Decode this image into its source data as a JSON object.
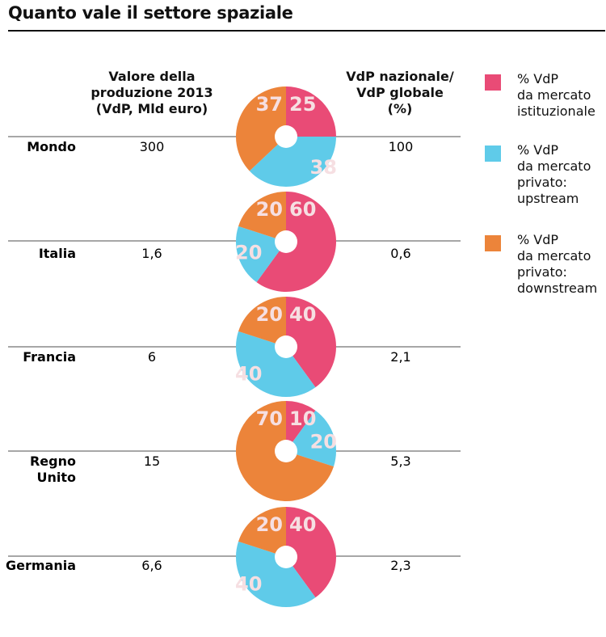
{
  "title": "Quanto vale il settore spaziale",
  "headers": {
    "value": "Valore della\nproduzione 2013\n(VdP, Mld euro)",
    "share": "VdP nazionale/\nVdP globale\n(%)"
  },
  "colors": {
    "istituzionale": "#e94b76",
    "upstream": "#5fcbe9",
    "downstream": "#ec843a",
    "slice_label": "#f6dfe2",
    "rule": "#8a8a8a"
  },
  "legend": [
    {
      "key": "istituzionale",
      "color_key": "istituzionale",
      "text": "% VdP\nda mercato\nistituzionale"
    },
    {
      "key": "upstream",
      "color_key": "upstream",
      "text": "% VdP\nda mercato\nprivato:\nupstream"
    },
    {
      "key": "downstream",
      "color_key": "downstream",
      "text": "% VdP\nda mercato\nprivato:\ndownstream"
    }
  ],
  "chart_data": {
    "type": "pie",
    "series_names": [
      "% VdP da mercato istituzionale",
      "% VdP da mercato privato: upstream",
      "% VdP da mercato privato: downstream"
    ],
    "rows": [
      {
        "name": "Mondo",
        "vdp": "300",
        "share": "100",
        "values": [
          25,
          38,
          37
        ]
      },
      {
        "name": "Italia",
        "vdp": "1,6",
        "share": "0,6",
        "values": [
          60,
          20,
          20
        ]
      },
      {
        "name": "Francia",
        "vdp": "6",
        "share": "2,1",
        "values": [
          40,
          40,
          20
        ]
      },
      {
        "name": "Regno\nUnito",
        "vdp": "15",
        "share": "5,3",
        "values": [
          10,
          20,
          70
        ]
      },
      {
        "name": "Germania",
        "vdp": "6,6",
        "share": "2,3",
        "values": [
          40,
          40,
          20
        ]
      }
    ]
  }
}
